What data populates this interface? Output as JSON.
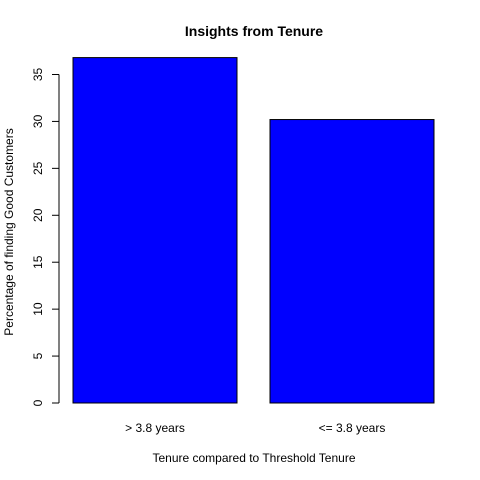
{
  "chart_data": {
    "type": "bar",
    "title": "Insights from Tenure",
    "xlabel": "Tenure compared to Threshold Tenure",
    "ylabel": "Percentage of finding Good Customers",
    "categories": [
      "> 3.8 years",
      "<= 3.8 years"
    ],
    "values": [
      36.8,
      30.2
    ],
    "ylim": [
      0,
      37.5
    ],
    "yticks": [
      0,
      5,
      10,
      15,
      20,
      25,
      30,
      35
    ],
    "grid": false,
    "legend": "none",
    "bar_color": "#0000FF",
    "bar_border_color": "#000000"
  }
}
